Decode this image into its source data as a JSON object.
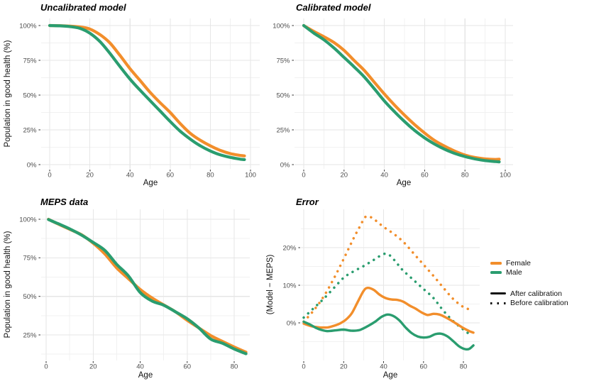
{
  "figure": {
    "background": "#ffffff"
  },
  "colors": {
    "female": "#F28E2B",
    "male": "#2A9D6F",
    "grid_major": "#E6E6E6",
    "grid_minor": "#F1F1F1",
    "tick_mark": "#333333",
    "tick_text": "#4D4D4D",
    "title_text": "#000000"
  },
  "legend": {
    "color_entries": [
      {
        "label": "Female",
        "color": "#F28E2B"
      },
      {
        "label": "Male",
        "color": "#2A9D6F"
      }
    ],
    "linetype_entries": [
      {
        "label": "After calibration",
        "linetype": "solid"
      },
      {
        "label": "Before calibration",
        "linetype": "dotted"
      }
    ]
  },
  "chart_data": [
    {
      "id": "uncalibrated-model",
      "type": "line",
      "title": "Uncalibrated model",
      "xlabel": "Age",
      "ylabel": "Population in good health (%)",
      "xlim": [
        0,
        100
      ],
      "ylim": [
        0,
        100
      ],
      "x_ticks": [
        0,
        20,
        40,
        60,
        80,
        100
      ],
      "x_minor_ticks": [
        10,
        30,
        50,
        70,
        90
      ],
      "y_ticks": [
        0,
        25,
        50,
        75,
        100
      ],
      "y_minor_ticks": [
        12.5,
        37.5,
        62.5,
        87.5
      ],
      "y_tick_suffix": "%",
      "grid": true,
      "series": [
        {
          "name": "Female",
          "color_key": "female",
          "linetype": "solid",
          "x": [
            0,
            5,
            10,
            15,
            20,
            25,
            30,
            35,
            40,
            45,
            50,
            55,
            60,
            65,
            70,
            75,
            80,
            85,
            90,
            95,
            97
          ],
          "y": [
            100,
            99.9,
            99.6,
            99,
            97.5,
            93.5,
            87.5,
            78.5,
            69,
            60.5,
            52,
            44.5,
            37.5,
            29.5,
            22.5,
            17.5,
            13.5,
            10.2,
            7.9,
            6.6,
            6.3
          ]
        },
        {
          "name": "Male",
          "color_key": "male",
          "linetype": "solid",
          "x": [
            0,
            5,
            10,
            15,
            20,
            25,
            30,
            35,
            40,
            45,
            50,
            55,
            60,
            65,
            70,
            75,
            80,
            85,
            90,
            95,
            97
          ],
          "y": [
            100,
            99.8,
            99.3,
            98,
            94.5,
            88.5,
            80,
            70.5,
            61.5,
            53.5,
            46,
            38.5,
            31,
            24,
            18.3,
            13.5,
            9.8,
            7,
            5.2,
            3.9,
            3.6
          ]
        }
      ]
    },
    {
      "id": "calibrated-model",
      "type": "line",
      "title": "Calibrated model",
      "xlabel": "Age",
      "ylabel": "",
      "xlim": [
        0,
        100
      ],
      "ylim": [
        0,
        100
      ],
      "x_ticks": [
        0,
        20,
        40,
        60,
        80,
        100
      ],
      "x_minor_ticks": [
        10,
        30,
        50,
        70,
        90
      ],
      "y_ticks": [
        0,
        25,
        50,
        75,
        100
      ],
      "y_minor_ticks": [
        12.5,
        37.5,
        62.5,
        87.5
      ],
      "y_tick_suffix": "%",
      "grid": true,
      "series": [
        {
          "name": "Female",
          "color_key": "female",
          "linetype": "solid",
          "x": [
            0,
            5,
            10,
            15,
            20,
            25,
            30,
            35,
            40,
            45,
            50,
            55,
            60,
            65,
            70,
            75,
            80,
            85,
            90,
            95,
            97
          ],
          "y": [
            100,
            95.8,
            92,
            87.8,
            82.2,
            74.9,
            67.8,
            59.3,
            50.8,
            42.9,
            35.6,
            28.8,
            22.7,
            17.3,
            13.2,
            9.7,
            6.9,
            5.1,
            4.1,
            3.7,
            3.9
          ]
        },
        {
          "name": "Male",
          "color_key": "male",
          "linetype": "solid",
          "x": [
            0,
            5,
            10,
            15,
            20,
            25,
            30,
            35,
            40,
            45,
            50,
            55,
            60,
            65,
            70,
            75,
            80,
            85,
            90,
            95,
            97
          ],
          "y": [
            100,
            94.6,
            89.8,
            83.9,
            77.1,
            70.3,
            63.1,
            54.6,
            45.8,
            38.1,
            31,
            24.6,
            19.2,
            14.7,
            11,
            8,
            5.8,
            4.1,
            2.9,
            2.2,
            2
          ]
        }
      ]
    },
    {
      "id": "meps-data",
      "type": "line",
      "title": "MEPS data",
      "xlabel": "Age",
      "ylabel": "Population in good health (%)",
      "xlim": [
        1,
        85
      ],
      "ylim": [
        12,
        100
      ],
      "x_ticks": [
        0,
        20,
        40,
        60,
        80
      ],
      "x_minor_ticks": [
        10,
        30,
        50,
        70
      ],
      "y_ticks": [
        25,
        50,
        75,
        100
      ],
      "y_minor_ticks": [
        12.5,
        37.5,
        62.5,
        87.5
      ],
      "y_tick_suffix": "%",
      "grid": true,
      "series": [
        {
          "name": "Female",
          "color_key": "female",
          "linetype": "solid",
          "x": [
            1,
            5,
            10,
            15,
            20,
            25,
            30,
            35,
            40,
            45,
            50,
            55,
            60,
            65,
            70,
            75,
            80,
            85
          ],
          "y": [
            100,
            97,
            93.5,
            90,
            84.5,
            77.5,
            68.5,
            61.5,
            54.5,
            49,
            44.5,
            40,
            34.5,
            29.5,
            24.6,
            20.8,
            17.2,
            13.8
          ]
        },
        {
          "name": "Male",
          "color_key": "male",
          "linetype": "solid",
          "x": [
            1,
            5,
            10,
            15,
            20,
            25,
            30,
            35,
            40,
            45,
            50,
            55,
            60,
            65,
            70,
            75,
            80,
            85
          ],
          "y": [
            99.8,
            97.2,
            93.8,
            89.8,
            85,
            79.8,
            70.8,
            63.3,
            52.5,
            47,
            44.3,
            40,
            35.5,
            29.5,
            22.3,
            19.6,
            15.9,
            12.8
          ]
        }
      ]
    },
    {
      "id": "error",
      "type": "line",
      "title": "Error",
      "xlabel": "Age",
      "ylabel": "(Model − MEPS)",
      "xlim": [
        0,
        85
      ],
      "ylim": [
        -7,
        28.5
      ],
      "x_ticks": [
        0,
        20,
        40,
        60,
        80
      ],
      "x_minor_ticks": [
        10,
        30,
        50,
        70
      ],
      "y_ticks": [
        0,
        10,
        20
      ],
      "y_minor_ticks": [
        -5,
        5,
        15,
        25
      ],
      "y_tick_suffix": "%",
      "grid": true,
      "series": [
        {
          "name": "Female (before calibration)",
          "color_key": "female",
          "linetype": "dotted",
          "x": [
            0,
            5,
            10,
            15,
            20,
            25,
            28,
            31,
            34,
            37,
            40,
            45,
            50,
            55,
            60,
            65,
            70,
            75,
            80,
            83
          ],
          "y": [
            0.3,
            3.3,
            7,
            11.7,
            17,
            22.5,
            25.5,
            28.2,
            28,
            26.8,
            25.5,
            23.7,
            21.5,
            18.5,
            15.5,
            12.5,
            9.3,
            6.3,
            4.2,
            3.6
          ]
        },
        {
          "name": "Male (before calibration)",
          "color_key": "male",
          "linetype": "dotted",
          "x": [
            0,
            5,
            10,
            15,
            20,
            25,
            30,
            35,
            40,
            43,
            46,
            48,
            50,
            55,
            60,
            65,
            70,
            75,
            80,
            83
          ],
          "y": [
            1.4,
            3.9,
            6.4,
            9.2,
            12,
            13.7,
            15.1,
            16.7,
            18.3,
            18,
            16.3,
            15,
            13.8,
            11.4,
            9,
            6.6,
            3.2,
            0.4,
            -1.8,
            -3
          ]
        },
        {
          "name": "Female (after calibration)",
          "color_key": "female",
          "linetype": "solid",
          "x": [
            0,
            4,
            8,
            12,
            15,
            18,
            21,
            24,
            27,
            30,
            32,
            35,
            38,
            41,
            44,
            47,
            50,
            53,
            56,
            59,
            62,
            65,
            68,
            71,
            74,
            77,
            80,
            83,
            85
          ],
          "y": [
            -0.2,
            -0.9,
            -1.2,
            -1.2,
            -0.8,
            -0.2,
            0.8,
            2.5,
            5.5,
            8.5,
            9.3,
            8.8,
            7.5,
            6.6,
            6.2,
            6.1,
            5.6,
            4.6,
            3.8,
            2.8,
            2.1,
            2.4,
            2.2,
            1.5,
            0.6,
            -0.4,
            -1.4,
            -2.2,
            -2.6
          ]
        },
        {
          "name": "Male (after calibration)",
          "color_key": "male",
          "linetype": "solid",
          "x": [
            0,
            3,
            6,
            9,
            12,
            16,
            20,
            24,
            28,
            32,
            36,
            39,
            42,
            45,
            48,
            51,
            54,
            57,
            60,
            63,
            66,
            69,
            72,
            75,
            78,
            81,
            83,
            85
          ],
          "y": [
            0.3,
            -0.4,
            -1.3,
            -1.9,
            -2.2,
            -2,
            -1.8,
            -2.1,
            -1.9,
            -0.9,
            0.4,
            1.6,
            2.2,
            1.8,
            0.6,
            -1.2,
            -2.7,
            -3.6,
            -3.9,
            -3.7,
            -3,
            -2.9,
            -3.6,
            -4.9,
            -6.3,
            -7,
            -6.9,
            -6
          ]
        }
      ]
    }
  ]
}
